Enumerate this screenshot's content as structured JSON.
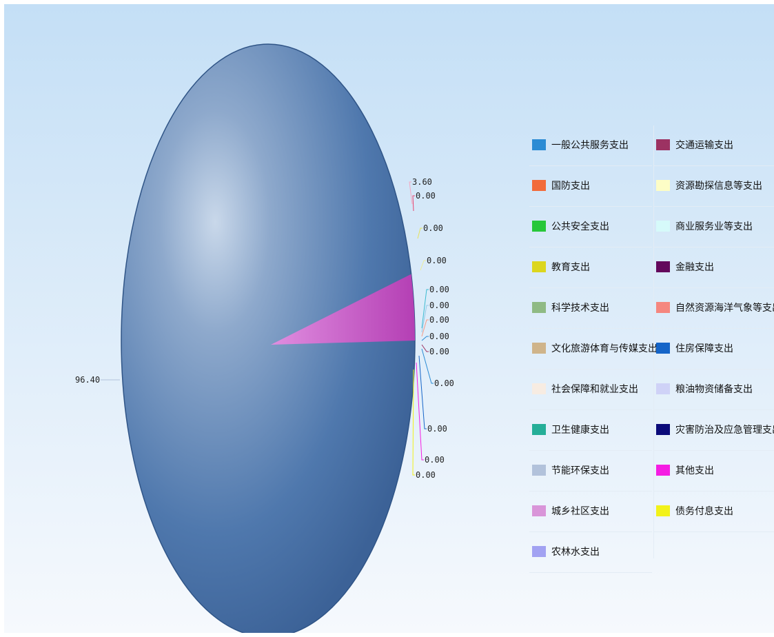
{
  "chart_data": {
    "type": "pie",
    "title": "",
    "slices": [
      {
        "label": "一般公共服务支出",
        "value": 0.0,
        "color": "#2b8bd4"
      },
      {
        "label": "国防支出",
        "value": 0.0,
        "color": "#f26b3a"
      },
      {
        "label": "公共安全支出",
        "value": 0.0,
        "color": "#27c739"
      },
      {
        "label": "教育支出",
        "value": 0.0,
        "color": "#dcd61e"
      },
      {
        "label": "科学技术支出",
        "value": 0.0,
        "color": "#8fba84"
      },
      {
        "label": "文化旅游体育与传媒支出",
        "value": 0.0,
        "color": "#cfb48a"
      },
      {
        "label": "社会保障和就业支出",
        "value": 0.0,
        "color": "#f7ece2"
      },
      {
        "label": "卫生健康支出",
        "value": 0.0,
        "color": "#25ae98"
      },
      {
        "label": "节能环保支出",
        "value": 0.0,
        "color": "#b2c2db"
      },
      {
        "label": "城乡社区支出",
        "value": 3.6,
        "color": "#d995d9"
      },
      {
        "label": "农林水支出",
        "value": 96.4,
        "color": "#a2a2f2"
      },
      {
        "label": "交通运输支出",
        "value": 0.0,
        "color": "#9c3262"
      },
      {
        "label": "资源勘探信息等支出",
        "value": 0.0,
        "color": "#fdfdc6"
      },
      {
        "label": "商业服务业等支出",
        "value": 0.0,
        "color": "#d6fafa"
      },
      {
        "label": "金融支出",
        "value": 0.0,
        "color": "#63085c"
      },
      {
        "label": "自然资源海洋气象等支出",
        "value": 0.0,
        "color": "#f5877f"
      },
      {
        "label": "住房保障支出",
        "value": 0.0,
        "color": "#1565c8"
      },
      {
        "label": "粮油物资储备支出",
        "value": 0.0,
        "color": "#cfd2f7"
      },
      {
        "label": "灾害防治及应急管理支出",
        "value": 0.0,
        "color": "#0b0b7a"
      },
      {
        "label": "其他支出",
        "value": 0.0,
        "color": "#f51de3"
      },
      {
        "label": "债务付息支出",
        "value": 0.0,
        "color": "#f2f21a"
      }
    ],
    "callout_labels": [
      "3.60",
      "0.00",
      "0.00",
      "0.00",
      "0.00",
      "0.00",
      "0.00",
      "0.00",
      "0.00",
      "0.00",
      "0.00",
      "0.00",
      "0.00",
      "96.40"
    ],
    "legend_position": "right"
  }
}
